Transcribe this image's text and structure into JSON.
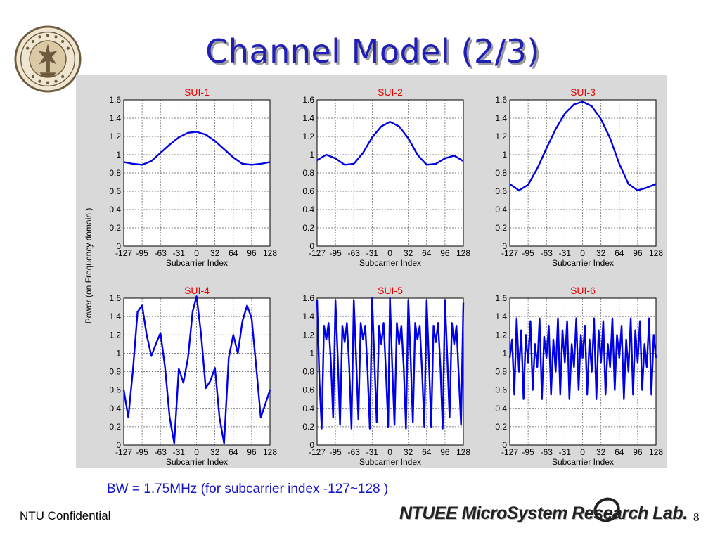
{
  "slide": {
    "title": "Channel Model (2/3)",
    "caption": "BW = 1.75MHz (for subcarrier index -127~128 )",
    "footer_left": "NTU Confidential",
    "footer_lab": "NTUEE MicroSystem Research Lab.",
    "page_number": "8"
  },
  "colors": {
    "title": "#1f1fb8",
    "series": "#0000e6",
    "subplot_title": "#e60000",
    "caption": "#1414c8",
    "grid": "#555555"
  },
  "chart_data": {
    "shared": {
      "type": "line",
      "ylabel": "Power (on Frequency domain )",
      "xlabel": "Subcarrier Index",
      "xticks": [
        "-127",
        "-95",
        "-63",
        "-31",
        "0",
        "32",
        "64",
        "96",
        "128"
      ],
      "yticks": [
        "0",
        "0.2",
        "0.4",
        "0.6",
        "0.8",
        "1",
        "1.2",
        "1.4",
        "1.6"
      ],
      "xlim": [
        -127,
        128
      ],
      "ylim": [
        0,
        1.6
      ],
      "grid": true
    },
    "panels": [
      {
        "title": "SUI-1",
        "x": [
          -127,
          -111,
          -95,
          -79,
          -63,
          -47,
          -31,
          -15,
          0,
          16,
          32,
          48,
          64,
          80,
          96,
          112,
          128
        ],
        "y": [
          0.92,
          0.9,
          0.89,
          0.93,
          1.02,
          1.11,
          1.19,
          1.24,
          1.25,
          1.22,
          1.15,
          1.06,
          0.97,
          0.9,
          0.89,
          0.9,
          0.92
        ]
      },
      {
        "title": "SUI-2",
        "x": [
          -127,
          -111,
          -95,
          -79,
          -63,
          -47,
          -31,
          -15,
          0,
          16,
          32,
          48,
          64,
          80,
          96,
          112,
          128
        ],
        "y": [
          0.94,
          1.0,
          0.96,
          0.89,
          0.9,
          1.02,
          1.19,
          1.31,
          1.36,
          1.31,
          1.18,
          1.0,
          0.89,
          0.9,
          0.96,
          0.99,
          0.93
        ]
      },
      {
        "title": "SUI-3",
        "x": [
          -127,
          -111,
          -95,
          -79,
          -63,
          -47,
          -31,
          -15,
          0,
          16,
          32,
          48,
          64,
          80,
          96,
          112,
          128
        ],
        "y": [
          0.68,
          0.61,
          0.67,
          0.85,
          1.07,
          1.28,
          1.45,
          1.55,
          1.58,
          1.53,
          1.39,
          1.18,
          0.9,
          0.68,
          0.61,
          0.64,
          0.68
        ]
      },
      {
        "title": "SUI-4",
        "x": [
          -127,
          -119,
          -111,
          -103,
          -95,
          -87,
          -79,
          -71,
          -63,
          -55,
          -47,
          -39,
          -31,
          -23,
          -15,
          -7,
          0,
          8,
          16,
          24,
          32,
          40,
          48,
          56,
          64,
          72,
          80,
          88,
          96,
          104,
          112,
          120,
          128
        ],
        "y": [
          0.6,
          0.3,
          0.82,
          1.45,
          1.52,
          1.2,
          0.97,
          1.1,
          1.22,
          0.85,
          0.3,
          0.02,
          0.83,
          0.68,
          0.95,
          1.45,
          1.62,
          1.2,
          0.62,
          0.7,
          0.84,
          0.3,
          0.02,
          0.95,
          1.2,
          1.0,
          1.35,
          1.52,
          1.38,
          0.85,
          0.3,
          0.45,
          0.6
        ]
      },
      {
        "title": "SUI-5",
        "x": [
          -127,
          -123,
          -119,
          -115,
          -111,
          -107,
          -103,
          -99,
          -95,
          -91,
          -87,
          -83,
          -79,
          -75,
          -71,
          -67,
          -63,
          -59,
          -55,
          -51,
          -47,
          -43,
          -39,
          -35,
          -31,
          -27,
          -23,
          -19,
          -15,
          -11,
          -7,
          -3,
          0,
          4,
          8,
          12,
          16,
          20,
          24,
          28,
          32,
          36,
          40,
          44,
          48,
          52,
          56,
          60,
          64,
          68,
          72,
          76,
          80,
          84,
          88,
          92,
          96,
          100,
          104,
          108,
          112,
          116,
          120,
          124,
          128
        ],
        "y": [
          1.58,
          0.7,
          0.18,
          1.3,
          1.15,
          1.33,
          0.9,
          0.3,
          1.58,
          0.95,
          0.22,
          1.3,
          1.12,
          1.33,
          0.85,
          0.18,
          1.58,
          0.95,
          0.28,
          1.33,
          1.15,
          1.3,
          0.8,
          0.18,
          1.6,
          0.9,
          0.25,
          1.3,
          1.1,
          1.33,
          0.8,
          0.2,
          1.6,
          0.85,
          0.22,
          1.33,
          1.1,
          1.3,
          0.85,
          0.18,
          1.58,
          0.95,
          0.25,
          1.33,
          1.15,
          1.3,
          0.8,
          0.2,
          1.58,
          0.9,
          0.2,
          1.3,
          1.12,
          1.33,
          0.85,
          0.18,
          1.58,
          0.95,
          0.3,
          1.33,
          1.1,
          1.3,
          0.75,
          0.22,
          1.55
        ]
      },
      {
        "title": "SUI-6",
        "x": [
          -127,
          -123,
          -119,
          -115,
          -111,
          -107,
          -103,
          -99,
          -95,
          -91,
          -87,
          -83,
          -79,
          -75,
          -71,
          -67,
          -63,
          -59,
          -55,
          -51,
          -47,
          -43,
          -39,
          -35,
          -31,
          -27,
          -23,
          -19,
          -15,
          -11,
          -7,
          -3,
          0,
          4,
          8,
          12,
          16,
          20,
          24,
          28,
          32,
          36,
          40,
          44,
          48,
          52,
          56,
          60,
          64,
          68,
          72,
          76,
          80,
          84,
          88,
          92,
          96,
          100,
          104,
          108,
          112,
          116,
          120,
          124,
          128
        ],
        "y": [
          0.95,
          1.15,
          0.55,
          1.38,
          0.8,
          1.25,
          0.5,
          1.2,
          0.9,
          1.35,
          0.6,
          1.1,
          0.85,
          1.38,
          0.5,
          1.18,
          0.95,
          1.3,
          0.55,
          1.15,
          0.8,
          1.38,
          0.55,
          1.25,
          0.9,
          1.35,
          0.5,
          1.1,
          0.85,
          1.38,
          0.6,
          1.2,
          0.95,
          1.3,
          0.55,
          1.15,
          0.8,
          1.38,
          0.5,
          1.25,
          0.9,
          1.35,
          0.55,
          1.1,
          0.85,
          1.38,
          0.6,
          1.2,
          0.95,
          1.3,
          0.5,
          1.15,
          0.8,
          1.38,
          0.55,
          1.25,
          0.9,
          1.35,
          0.6,
          1.1,
          0.85,
          1.38,
          0.55,
          1.2,
          0.95
        ]
      }
    ]
  }
}
